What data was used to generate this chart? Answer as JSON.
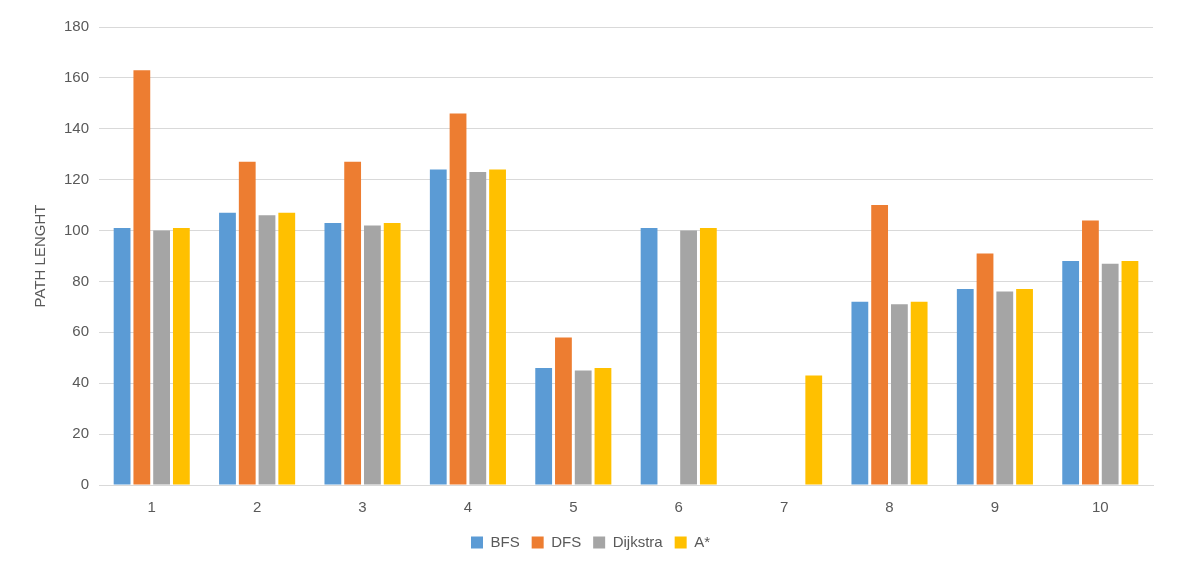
{
  "chart_data": {
    "type": "bar",
    "ylabel": "PATH LENGHT",
    "categories": [
      "1",
      "2",
      "3",
      "4",
      "5",
      "6",
      "7",
      "8",
      "9",
      "10"
    ],
    "series": [
      {
        "name": "BFS",
        "color": "#5b9bd5",
        "values": [
          101,
          107,
          103,
          124,
          46,
          101,
          null,
          72,
          77,
          88
        ]
      },
      {
        "name": "DFS",
        "color": "#ed7d31",
        "values": [
          163,
          127,
          127,
          146,
          58,
          null,
          null,
          110,
          91,
          104
        ]
      },
      {
        "name": "Dijkstra",
        "color": "#a5a5a5",
        "values": [
          100,
          106,
          102,
          123,
          45,
          100,
          null,
          71,
          76,
          87
        ]
      },
      {
        "name": "A*",
        "color": "#ffc000",
        "values": [
          101,
          107,
          103,
          124,
          46,
          101,
          43,
          72,
          77,
          88
        ]
      }
    ],
    "ylim": [
      0,
      180
    ],
    "yticks": [
      0,
      20,
      40,
      60,
      80,
      100,
      120,
      140,
      160,
      180
    ],
    "grid": "y",
    "legend": "bottom"
  }
}
